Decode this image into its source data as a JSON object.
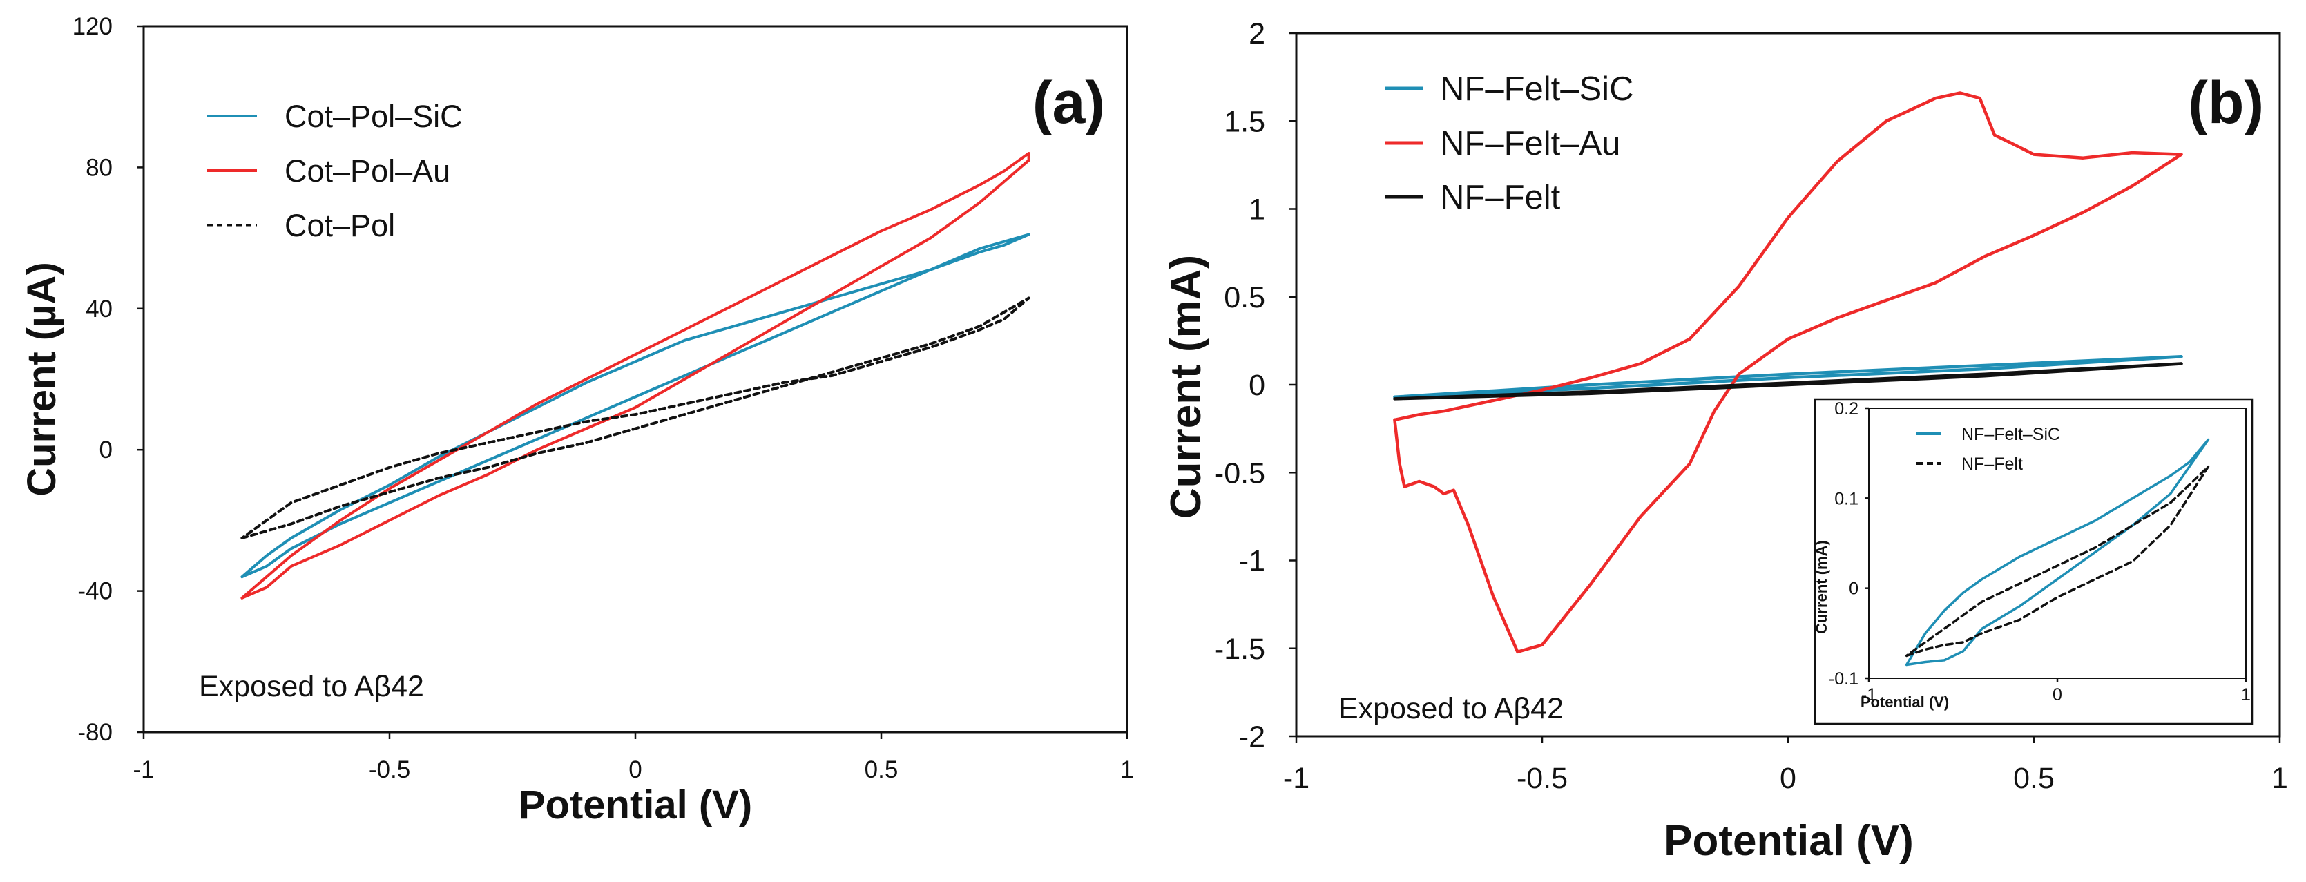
{
  "chart_data": [
    {
      "type": "line",
      "panel_label": "(a)",
      "xlabel": "Potential (V)",
      "ylabel": "Current (µA)",
      "xlim": [
        -1,
        1
      ],
      "ylim": [
        -80,
        120
      ],
      "xticks": [
        -1,
        -0.5,
        0,
        0.5,
        1
      ],
      "xtick_labels": [
        "-1",
        "-0.5",
        "0",
        "0.5",
        "1"
      ],
      "yticks": [
        -80,
        -40,
        0,
        40,
        80,
        120
      ],
      "ytick_labels": [
        "-80",
        "-40",
        "0",
        "40",
        "80",
        "120"
      ],
      "annotation": "Exposed to Aβ42",
      "legend_position": "top-left",
      "series": [
        {
          "name": "Cot–Pol–SiC",
          "color": "#1f8fb5",
          "style": "solid",
          "x": [
            -0.8,
            -0.75,
            -0.7,
            -0.6,
            -0.5,
            -0.4,
            -0.3,
            -0.2,
            -0.1,
            0,
            0.1,
            0.2,
            0.3,
            0.4,
            0.5,
            0.6,
            0.7,
            0.8,
            0.75,
            0.7,
            0.6,
            0.5,
            0.4,
            0.3,
            0.2,
            0.1,
            0,
            -0.1,
            -0.2,
            -0.3,
            -0.4,
            -0.5,
            -0.6,
            -0.7,
            -0.75,
            -0.8
          ],
          "y": [
            -36,
            -33,
            -28,
            -21,
            -15,
            -9,
            -3,
            3,
            9,
            15,
            21,
            27,
            33,
            39,
            45,
            51,
            57,
            61,
            58,
            56,
            51,
            47,
            43,
            39,
            35,
            31,
            25,
            19,
            12,
            5,
            -2,
            -10,
            -17,
            -25,
            -30,
            -36
          ]
        },
        {
          "name": "Cot–Pol–Au",
          "color": "#ee2a2a",
          "style": "solid",
          "x": [
            -0.8,
            -0.75,
            -0.7,
            -0.6,
            -0.5,
            -0.4,
            -0.3,
            -0.2,
            -0.1,
            0,
            0.1,
            0.2,
            0.3,
            0.4,
            0.5,
            0.6,
            0.7,
            0.8,
            0.8,
            0.75,
            0.7,
            0.6,
            0.5,
            0.4,
            0.3,
            0.2,
            0.1,
            0,
            -0.1,
            -0.2,
            -0.3,
            -0.4,
            -0.5,
            -0.6,
            -0.7,
            -0.75,
            -0.8
          ],
          "y": [
            -42,
            -39,
            -33,
            -27,
            -20,
            -13,
            -7,
            0,
            6,
            12,
            20,
            28,
            36,
            44,
            52,
            60,
            70,
            82,
            84,
            79,
            75,
            68,
            62,
            55,
            48,
            41,
            34,
            27,
            20,
            13,
            5,
            -3,
            -11,
            -20,
            -30,
            -36,
            -42
          ]
        },
        {
          "name": "Cot–Pol",
          "color": "#111111",
          "style": "dashed",
          "x": [
            -0.8,
            -0.7,
            -0.6,
            -0.5,
            -0.4,
            -0.3,
            -0.2,
            -0.1,
            0,
            0.1,
            0.2,
            0.3,
            0.4,
            0.5,
            0.6,
            0.7,
            0.8,
            0.75,
            0.7,
            0.6,
            0.5,
            0.4,
            0.3,
            0.2,
            0.1,
            0,
            -0.1,
            -0.2,
            -0.3,
            -0.4,
            -0.5,
            -0.6,
            -0.7,
            -0.8
          ],
          "y": [
            -25,
            -21,
            -16,
            -12,
            -8,
            -5,
            -1,
            2,
            6,
            10,
            14,
            18,
            22,
            26,
            30,
            35,
            43,
            37,
            34,
            29,
            25,
            21,
            19,
            16,
            13,
            10,
            8,
            5,
            2,
            -1,
            -5,
            -10,
            -15,
            -25
          ]
        }
      ]
    },
    {
      "type": "line",
      "panel_label": "(b)",
      "xlabel": "Potential (V)",
      "ylabel": "Current (mA)",
      "xlim": [
        -1,
        1
      ],
      "ylim": [
        -2,
        2
      ],
      "xticks": [
        -1,
        -0.5,
        0,
        0.5,
        1
      ],
      "xtick_labels": [
        "-1",
        "-0.5",
        "0",
        "0.5",
        "1"
      ],
      "yticks": [
        -2,
        -1.5,
        -1,
        -0.5,
        0,
        0.5,
        1,
        1.5,
        2
      ],
      "ytick_labels": [
        "-2",
        "-1.5",
        "-1",
        "-0.5",
        "0",
        "0.5",
        "1",
        "1.5",
        "2"
      ],
      "annotation": "Exposed to Aβ42",
      "legend_position": "top-left",
      "series": [
        {
          "name": "NF–Felt–SiC",
          "color": "#1f8fb5",
          "style": "solid",
          "x": [
            -0.8,
            -0.4,
            0,
            0.4,
            0.8,
            0.4,
            0,
            -0.4,
            -0.8
          ],
          "y": [
            -0.07,
            -0.02,
            0.04,
            0.09,
            0.16,
            0.11,
            0.06,
            0.0,
            -0.07
          ]
        },
        {
          "name": "NF–Felt–Au",
          "color": "#ee2a2a",
          "style": "solid",
          "x": [
            -0.8,
            -0.75,
            -0.7,
            -0.6,
            -0.5,
            -0.4,
            -0.3,
            -0.2,
            -0.1,
            0,
            0.1,
            0.2,
            0.3,
            0.35,
            0.39,
            0.42,
            0.45,
            0.5,
            0.6,
            0.7,
            0.8,
            0.8,
            0.7,
            0.6,
            0.5,
            0.4,
            0.3,
            0.2,
            0.1,
            0,
            -0.1,
            -0.15,
            -0.2,
            -0.3,
            -0.4,
            -0.5,
            -0.55,
            -0.6,
            -0.65,
            -0.68,
            -0.7,
            -0.72,
            -0.75,
            -0.78,
            -0.79,
            -0.8
          ],
          "y": [
            -0.2,
            -0.17,
            -0.15,
            -0.09,
            -0.03,
            0.04,
            0.12,
            0.26,
            0.56,
            0.95,
            1.27,
            1.5,
            1.63,
            1.66,
            1.63,
            1.42,
            1.38,
            1.31,
            1.29,
            1.32,
            1.31,
            1.31,
            1.13,
            0.98,
            0.85,
            0.73,
            0.58,
            0.48,
            0.38,
            0.26,
            0.06,
            -0.15,
            -0.45,
            -0.75,
            -1.13,
            -1.48,
            -1.52,
            -1.2,
            -0.8,
            -0.6,
            -0.62,
            -0.58,
            -0.55,
            -0.58,
            -0.45,
            -0.2
          ]
        },
        {
          "name": "NF–Felt",
          "color": "#111111",
          "style": "solid",
          "x": [
            -0.8,
            -0.4,
            0,
            0.4,
            0.8,
            0.4,
            0,
            -0.4,
            -0.8
          ],
          "y": [
            -0.08,
            -0.05,
            0.0,
            0.05,
            0.12,
            0.06,
            0.01,
            -0.04,
            -0.08
          ]
        }
      ],
      "inset": {
        "xlabel": "Potential (V)",
        "ylabel": "Current (mA)",
        "xlim": [
          -1,
          1
        ],
        "ylim": [
          -0.1,
          0.2
        ],
        "xticks": [
          -1,
          0,
          1
        ],
        "xtick_labels": [
          "-1",
          "0",
          "1"
        ],
        "yticks": [
          -0.1,
          0,
          0.1,
          0.2
        ],
        "ytick_labels": [
          "-0.1",
          "0",
          "0.1",
          "0.2"
        ],
        "legend_position": "top-left",
        "series": [
          {
            "name": "NF–Felt–SiC",
            "color": "#1f8fb5",
            "style": "solid",
            "x": [
              -0.8,
              -0.7,
              -0.6,
              -0.5,
              -0.4,
              -0.2,
              0,
              0.2,
              0.4,
              0.6,
              0.8,
              0.7,
              0.6,
              0.4,
              0.2,
              0,
              -0.2,
              -0.4,
              -0.5,
              -0.6,
              -0.7,
              -0.8
            ],
            "y": [
              -0.085,
              -0.082,
              -0.08,
              -0.07,
              -0.045,
              -0.02,
              0.01,
              0.04,
              0.07,
              0.105,
              0.165,
              0.14,
              0.125,
              0.1,
              0.075,
              0.055,
              0.035,
              0.01,
              -0.005,
              -0.025,
              -0.05,
              -0.085
            ]
          },
          {
            "name": "NF–Felt",
            "color": "#111111",
            "style": "dashed",
            "x": [
              -0.8,
              -0.7,
              -0.6,
              -0.5,
              -0.4,
              -0.2,
              0,
              0.2,
              0.4,
              0.6,
              0.8,
              0.7,
              0.6,
              0.4,
              0.2,
              0,
              -0.2,
              -0.4,
              -0.6,
              -0.8
            ],
            "y": [
              -0.075,
              -0.068,
              -0.063,
              -0.06,
              -0.05,
              -0.035,
              -0.01,
              0.01,
              0.03,
              0.07,
              0.135,
              0.115,
              0.095,
              0.07,
              0.045,
              0.025,
              0.005,
              -0.015,
              -0.045,
              -0.075
            ]
          }
        ]
      }
    }
  ]
}
